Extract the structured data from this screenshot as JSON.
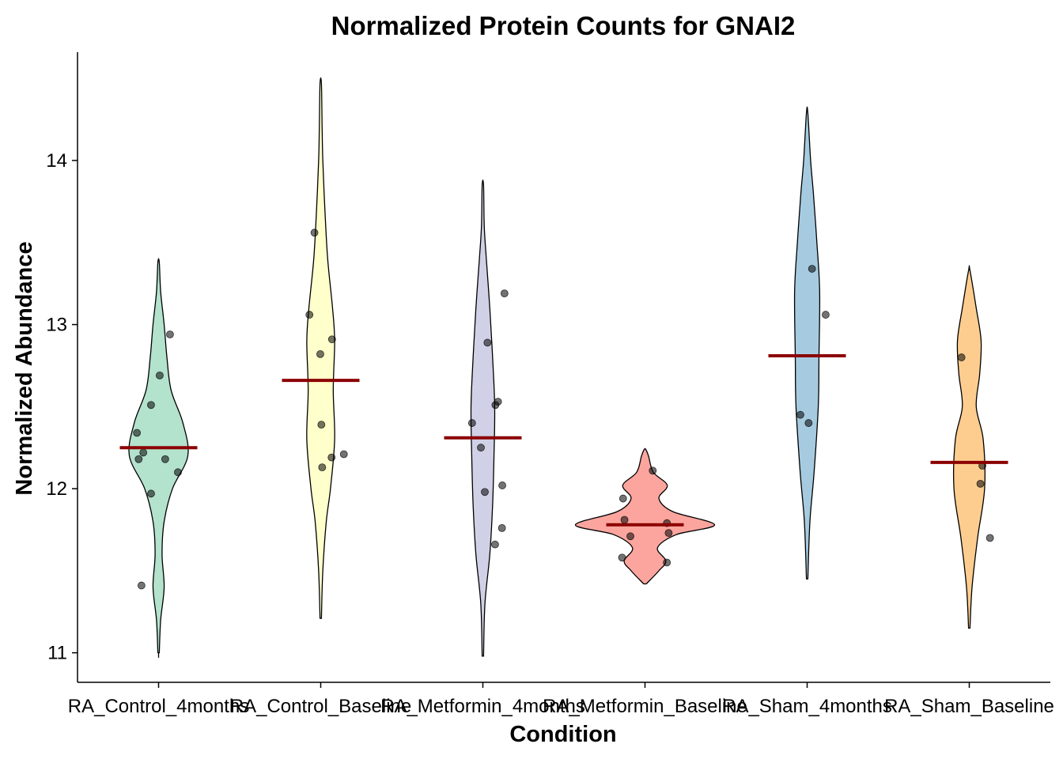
{
  "chart_data": {
    "type": "violin",
    "title": "Normalized Protein Counts for GNAI2",
    "xlabel": "Condition",
    "ylabel": "Normalized Abundance",
    "ylim": [
      10.82,
      14.66
    ],
    "yticks": [
      11,
      12,
      13,
      14
    ],
    "legend": "none",
    "mean_line_color": "#8B0000",
    "categories": [
      "RA_Control_4months",
      "RA_Control_Baseline",
      "RA_Metformin_4months",
      "RA_Metformin_Baseline",
      "RA_Sham_4months",
      "RA_Sham_Baseline"
    ],
    "series": [
      {
        "category": "RA_Control_4months",
        "color": "#B3E2CD",
        "range": [
          10.97,
          13.38
        ],
        "mean": 12.25,
        "points": [
          12.94,
          12.69,
          12.51,
          12.34,
          12.22,
          12.18,
          12.18,
          12.1,
          11.97,
          11.41
        ],
        "density": [
          [
            11.0,
            0.01
          ],
          [
            11.2,
            0.03
          ],
          [
            11.4,
            0.08
          ],
          [
            11.6,
            0.05
          ],
          [
            11.8,
            0.08
          ],
          [
            12.0,
            0.2
          ],
          [
            12.2,
            0.42
          ],
          [
            12.4,
            0.35
          ],
          [
            12.6,
            0.18
          ],
          [
            12.8,
            0.12
          ],
          [
            13.0,
            0.08
          ],
          [
            13.2,
            0.03
          ],
          [
            13.38,
            0.01
          ]
        ]
      },
      {
        "category": "RA_Control_Baseline",
        "color": "#FFFFCC",
        "range": [
          11.21,
          14.47
        ],
        "mean": 12.66,
        "points": [
          13.56,
          13.06,
          12.91,
          12.82,
          12.39,
          12.21,
          12.19,
          12.13
        ],
        "density": [
          [
            11.21,
            0.01
          ],
          [
            11.5,
            0.03
          ],
          [
            11.8,
            0.08
          ],
          [
            12.0,
            0.14
          ],
          [
            12.3,
            0.2
          ],
          [
            12.6,
            0.18
          ],
          [
            12.9,
            0.2
          ],
          [
            13.1,
            0.17
          ],
          [
            13.4,
            0.1
          ],
          [
            13.7,
            0.06
          ],
          [
            14.0,
            0.03
          ],
          [
            14.2,
            0.02
          ],
          [
            14.47,
            0.01
          ]
        ]
      },
      {
        "category": "RA_Metformin_4months",
        "color": "#D0D1E6",
        "range": [
          10.98,
          13.85
        ],
        "mean": 12.31,
        "points": [
          13.19,
          12.89,
          12.53,
          12.51,
          12.4,
          12.25,
          12.02,
          11.98,
          11.76,
          11.66
        ],
        "density": [
          [
            10.98,
            0.01
          ],
          [
            11.3,
            0.03
          ],
          [
            11.6,
            0.1
          ],
          [
            11.9,
            0.14
          ],
          [
            12.2,
            0.16
          ],
          [
            12.5,
            0.17
          ],
          [
            12.8,
            0.14
          ],
          [
            13.1,
            0.1
          ],
          [
            13.4,
            0.05
          ],
          [
            13.6,
            0.02
          ],
          [
            13.85,
            0.01
          ]
        ]
      },
      {
        "category": "RA_Metformin_Baseline",
        "color": "#FBA59E",
        "range": [
          11.42,
          12.24
        ],
        "mean": 11.78,
        "points": [
          12.11,
          11.94,
          11.81,
          11.79,
          11.73,
          11.71,
          11.58,
          11.55
        ],
        "density": [
          [
            11.42,
            0.02
          ],
          [
            11.5,
            0.2
          ],
          [
            11.56,
            0.3
          ],
          [
            11.64,
            0.18
          ],
          [
            11.72,
            0.45
          ],
          [
            11.78,
            1.0
          ],
          [
            11.86,
            0.4
          ],
          [
            11.94,
            0.2
          ],
          [
            12.02,
            0.32
          ],
          [
            12.1,
            0.12
          ],
          [
            12.2,
            0.05
          ],
          [
            12.24,
            0.01
          ]
        ]
      },
      {
        "category": "RA_Sham_4months",
        "color": "#A6CBE0",
        "range": [
          11.45,
          14.29
        ],
        "mean": 12.81,
        "points": [
          13.34,
          13.06,
          12.45,
          12.4
        ],
        "density": [
          [
            11.45,
            0.01
          ],
          [
            11.8,
            0.04
          ],
          [
            12.1,
            0.1
          ],
          [
            12.5,
            0.16
          ],
          [
            12.8,
            0.17
          ],
          [
            13.2,
            0.18
          ],
          [
            13.5,
            0.14
          ],
          [
            13.8,
            0.09
          ],
          [
            14.0,
            0.05
          ],
          [
            14.29,
            0.01
          ]
        ]
      },
      {
        "category": "RA_Sham_Baseline",
        "color": "#FDCD8F",
        "range": [
          11.15,
          13.33
        ],
        "mean": 12.16,
        "points": [
          12.8,
          12.14,
          12.03,
          11.7
        ],
        "density": [
          [
            11.15,
            0.01
          ],
          [
            11.4,
            0.04
          ],
          [
            11.7,
            0.12
          ],
          [
            12.0,
            0.22
          ],
          [
            12.3,
            0.2
          ],
          [
            12.5,
            0.1
          ],
          [
            12.7,
            0.15
          ],
          [
            12.9,
            0.17
          ],
          [
            13.1,
            0.1
          ],
          [
            13.33,
            0.01
          ]
        ]
      }
    ]
  }
}
